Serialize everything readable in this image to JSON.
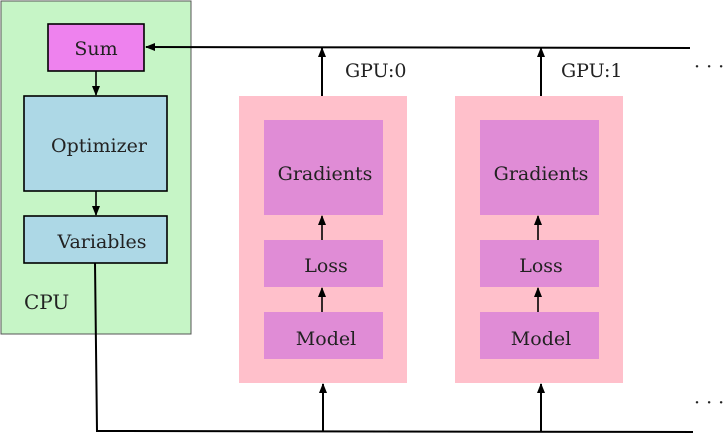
{
  "cpu": {
    "label": "CPU",
    "sum_label": "Sum",
    "optimizer_label": "Optimizer",
    "variables_label": "Variables"
  },
  "gpus": [
    {
      "label": "GPU:0",
      "gradients_label": "Gradients",
      "loss_label": "Loss",
      "model_label": "Model"
    },
    {
      "label": "GPU:1",
      "gradients_label": "Gradients",
      "loss_label": "Loss",
      "model_label": "Model"
    }
  ],
  "continuation_top": "· · ·",
  "continuation_bottom": "· · ·",
  "colors": {
    "cpu_region": "#c6f5c6",
    "sum_box": "#ee82ee",
    "cpu_boxes": "#add8e6",
    "gpu_region": "#ffc0cb",
    "gpu_boxes": "#e08cd6"
  }
}
